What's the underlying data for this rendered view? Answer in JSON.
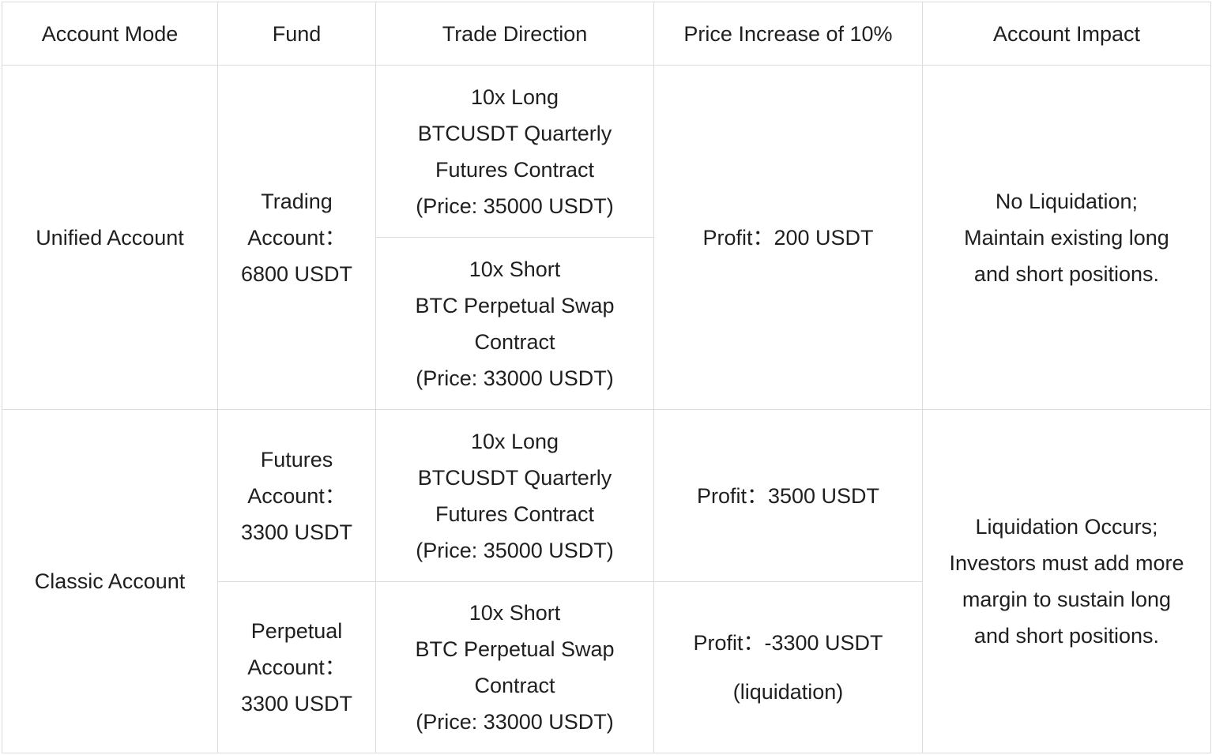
{
  "headers": [
    "Account Mode",
    "Fund",
    "Trade Direction",
    "Price Increase of 10%",
    "Account Impact"
  ],
  "unified": {
    "mode": "Unified Account",
    "fund": [
      "Trading",
      "Account：",
      "6800 USDT"
    ],
    "trade_long": [
      "10x Long",
      "BTCUSDT Quarterly",
      "Futures Contract",
      "(Price: 35000 USDT)"
    ],
    "trade_short": [
      "10x Short",
      "BTC Perpetual Swap",
      "Contract",
      "(Price: 33000 USDT)"
    ],
    "price": "Profit：200 USDT",
    "impact": [
      "No Liquidation;",
      "Maintain existing long",
      "and short positions."
    ]
  },
  "classic": {
    "mode": "Classic Account",
    "futures_fund": [
      "Futures",
      "Account：",
      "3300 USDT"
    ],
    "trade_long": [
      "10x Long",
      "BTCUSDT Quarterly",
      "Futures Contract",
      "(Price: 35000 USDT)"
    ],
    "futures_price": "Profit：3500 USDT",
    "perpetual_fund": [
      "Perpetual",
      "Account：",
      "3300 USDT"
    ],
    "trade_short": [
      "10x Short",
      "BTC Perpetual Swap",
      "Contract",
      "(Price: 33000 USDT)"
    ],
    "perpetual_price": "Profit：-3300 USDT",
    "perpetual_note": "(liquidation)",
    "impact": [
      "Liquidation Occurs;",
      "Investors must add more",
      "margin to sustain long",
      "and short positions."
    ]
  }
}
